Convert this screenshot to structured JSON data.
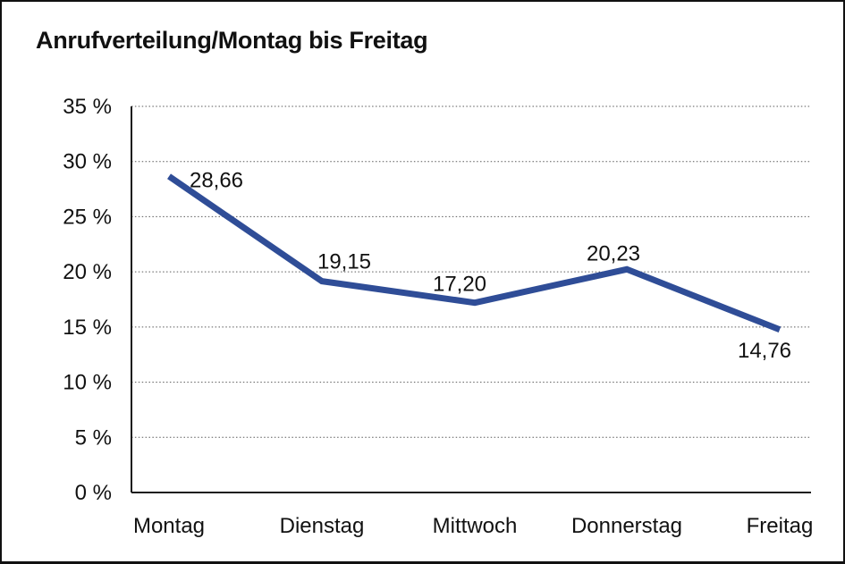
{
  "window": {
    "background": "#ffffff",
    "border_color": "#111111",
    "text_color": "#111111"
  },
  "chart_data": {
    "type": "line",
    "title": "Anrufverteilung/Montag bis Freitag",
    "categories": [
      "Montag",
      "Dienstag",
      "Mittwoch",
      "Donnerstag",
      "Freitag"
    ],
    "values": [
      28.66,
      19.15,
      17.2,
      20.23,
      14.76
    ],
    "data_labels": [
      "28,66",
      "19,15",
      "17,20",
      "20,23",
      "14,76"
    ],
    "xlabel": "",
    "ylabel": "",
    "ylim": [
      0,
      35
    ],
    "y_tick_step": 5,
    "y_tick_labels": [
      "0 %",
      "5 %",
      "10 %",
      "15 %",
      "20 %",
      "25 %",
      "30 %",
      "35 %"
    ],
    "grid": "horizontal-dotted",
    "legend": "none",
    "line_color": "#2F4D97",
    "gridline_color": "#5a5a5a",
    "axis_color": "#1a1a1a"
  }
}
